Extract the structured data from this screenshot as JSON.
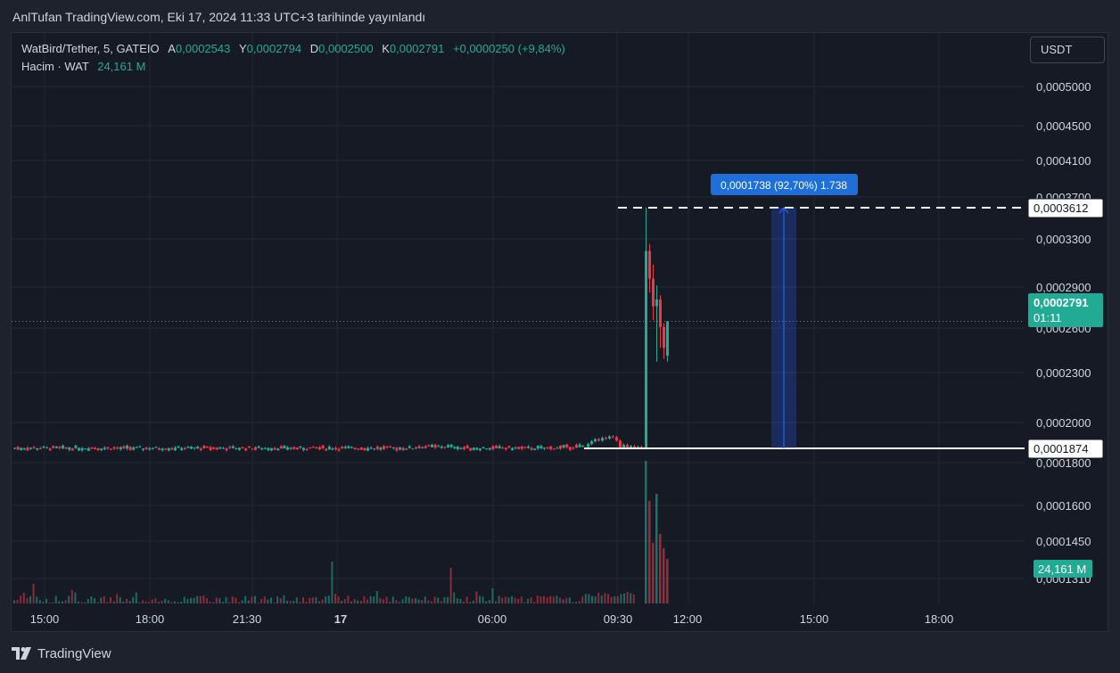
{
  "header": {
    "published": "AnlTufan TradingView.com, Eki 17, 2024 11:33 UTC+3 tarihinde yayınlandı"
  },
  "legend": {
    "symbol": "WatBird/Tether, 5, GATEIO",
    "open_key": "A",
    "open": "0,0002543",
    "high_key": "Y",
    "high": "0,0002794",
    "low_key": "D",
    "low": "0,0002500",
    "close_key": "K",
    "close": "0,0002791",
    "change": "+0,0000250 (+9,84%)",
    "volume_label": "Hacim · WAT",
    "volume": "24,161 M"
  },
  "currency_button": "USDT",
  "price_axis": {
    "ticks": [
      "0,0005000",
      "0,0004500",
      "0,0004100",
      "0,0003700",
      "0,0003300",
      "0,0002900",
      "0,0002600",
      "0,0002300",
      "0,0002000",
      "0,0001800",
      "0,0001600",
      "0,0001450",
      "0,0001310"
    ],
    "high_line_label": "0,0003612",
    "low_line_label": "0,0001874",
    "current_price": "0,0002791",
    "countdown": "01:11",
    "volume_badge": "24,161 M"
  },
  "time_axis": {
    "ticks": [
      "15:00",
      "18:00",
      "21:30",
      "17",
      "06:00",
      "09:30",
      "12:00",
      "15:00",
      "18:00"
    ]
  },
  "measure_tool": {
    "label": "0,0001738 (92,70%) 1.738",
    "from_price": 0.0001874,
    "to_price": 0.0003612
  },
  "colors": {
    "up": "#22ab94",
    "down": "#f23645",
    "measure": "#2962ff",
    "measure_label_bg": "#1e6fd9",
    "current_price_bg": "#22ab94"
  },
  "footer": {
    "brand": "TradingView"
  }
}
